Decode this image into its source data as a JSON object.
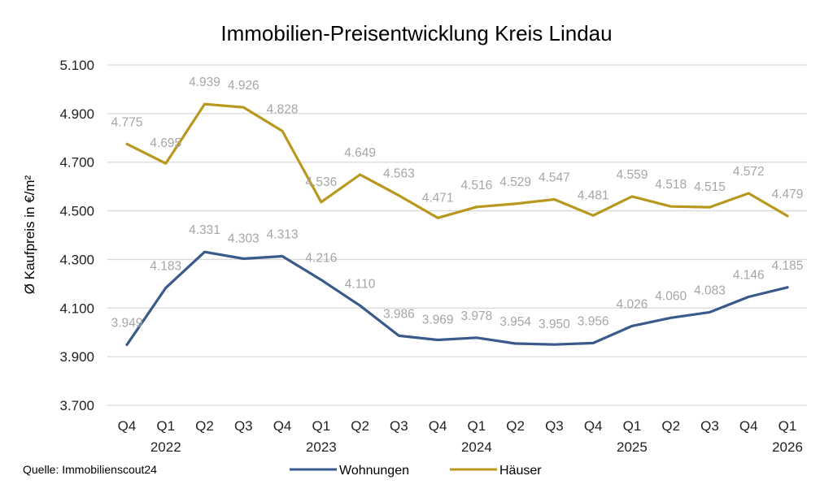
{
  "chart_data": {
    "type": "line",
    "title": "Immobilien-Preisentwicklung Kreis Lindau",
    "ylabel": "Ø Kaufpreis in €/m²",
    "xlabel": "",
    "ylim": [
      3700,
      5100
    ],
    "yticks": [
      3700,
      3900,
      4100,
      4300,
      4500,
      4700,
      4900,
      5100
    ],
    "ytick_labels": [
      "3.700",
      "3.900",
      "4.100",
      "4.300",
      "4.500",
      "4.700",
      "4.900",
      "5.100"
    ],
    "grid": true,
    "categories": [
      "Q4",
      "Q1",
      "Q2",
      "Q3",
      "Q4",
      "Q1",
      "Q2",
      "Q3",
      "Q4",
      "Q1",
      "Q2",
      "Q3",
      "Q4",
      "Q1",
      "Q2",
      "Q3",
      "Q4",
      "Q1"
    ],
    "year_labels": [
      {
        "index": 1,
        "label": "2022"
      },
      {
        "index": 5,
        "label": "2023"
      },
      {
        "index": 9,
        "label": "2024"
      },
      {
        "index": 13,
        "label": "2025"
      },
      {
        "index": 17,
        "label": "2026"
      }
    ],
    "series": [
      {
        "name": "Wohnungen",
        "color": "#3a5a8c",
        "values": [
          3949,
          4183,
          4331,
          4303,
          4313,
          4216,
          4110,
          3986,
          3969,
          3978,
          3954,
          3950,
          3956,
          4026,
          4060,
          4083,
          4146,
          4185
        ],
        "labels": [
          "3.949",
          "4.183",
          "4.331",
          "4.303",
          "4.313",
          "4.216",
          "4.110",
          "3.986",
          "3.969",
          "3.978",
          "3.954",
          "3.950",
          "3.956",
          "4.026",
          "4.060",
          "4.083",
          "4.146",
          "4.185"
        ]
      },
      {
        "name": "Häuser",
        "color": "#b8981e",
        "values": [
          4775,
          4695,
          4939,
          4926,
          4828,
          4536,
          4649,
          4563,
          4471,
          4516,
          4529,
          4547,
          4481,
          4559,
          4518,
          4515,
          4572,
          4479
        ],
        "labels": [
          "4.775",
          "4.695",
          "4.939",
          "4.926",
          "4.828",
          "4.536",
          "4.649",
          "4.563",
          "4.471",
          "4.516",
          "4.529",
          "4.547",
          "4.481",
          "4.559",
          "4.518",
          "4.515",
          "4.572",
          "4.479"
        ]
      }
    ],
    "legend": "bottom",
    "source": "Quelle: Immobilienscout24"
  }
}
